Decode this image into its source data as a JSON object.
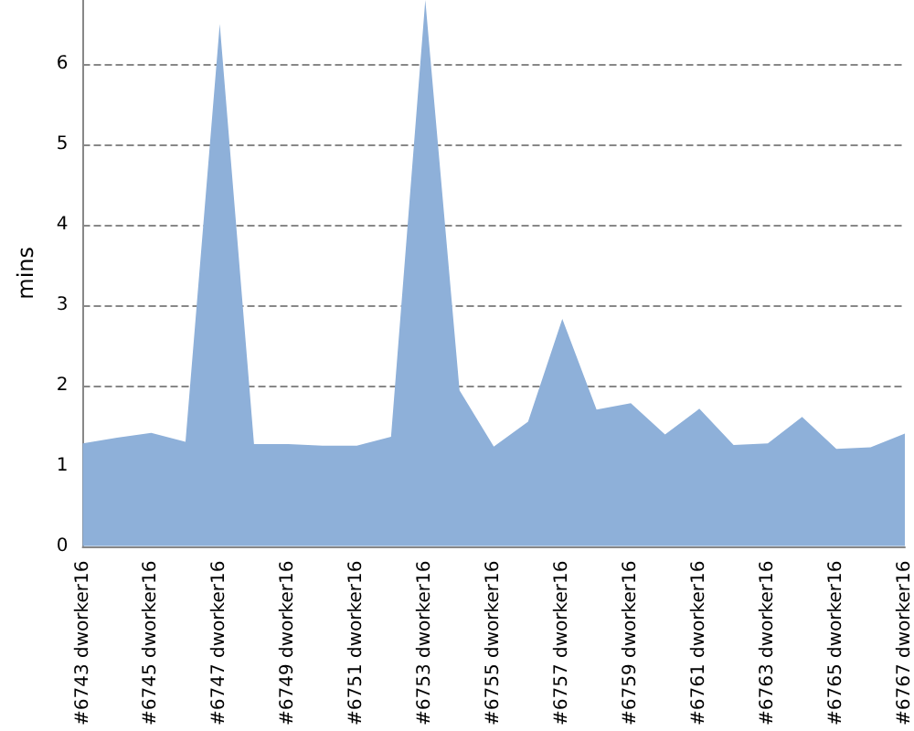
{
  "chart_data": {
    "type": "area",
    "ylabel": "mins",
    "categories": [
      "#6743 dworker16",
      null,
      "#6745 dworker16",
      null,
      "#6747 dworker16",
      null,
      "#6749 dworker16",
      null,
      "#6751 dworker16",
      null,
      "#6753 dworker16",
      null,
      "#6755 dworker16",
      null,
      "#6757 dworker16",
      null,
      "#6759 dworker16",
      null,
      "#6761 dworker16",
      null,
      "#6763 dworker16",
      null,
      "#6765 dworker16",
      null,
      "#6767 dworker16"
    ],
    "values": [
      1.28,
      1.35,
      1.41,
      1.3,
      6.5,
      1.27,
      1.27,
      1.25,
      1.25,
      1.36,
      6.8,
      1.94,
      1.24,
      1.55,
      2.83,
      1.7,
      1.78,
      1.39,
      1.71,
      1.26,
      1.28,
      1.61,
      1.21,
      1.23,
      1.4
    ],
    "color": "#8eb0d9",
    "ylim": [
      0,
      6.8
    ],
    "yticks": [
      0,
      1,
      2,
      3,
      4,
      5,
      6
    ],
    "grid": "y"
  }
}
